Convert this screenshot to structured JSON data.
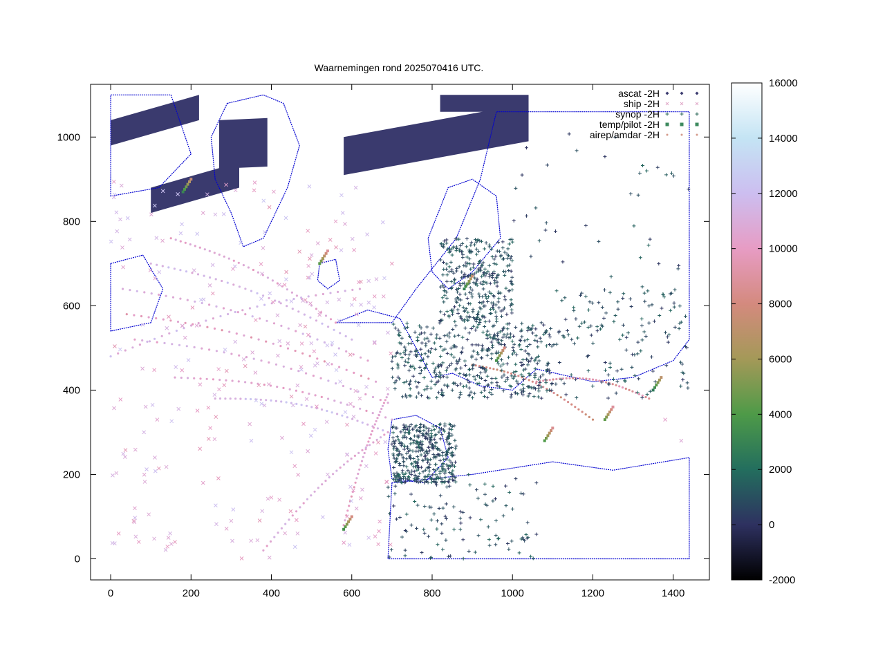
{
  "chart_data": {
    "type": "scatter",
    "title": "Waarnemingen rond 2025070416 UTC.",
    "xlabel": "",
    "ylabel": "",
    "xlim": [
      -50,
      1490
    ],
    "ylim": [
      -50,
      1125
    ],
    "x_ticks": [
      0,
      200,
      400,
      600,
      800,
      1000,
      1200,
      1400
    ],
    "y_ticks": [
      0,
      200,
      400,
      600,
      800,
      1000
    ],
    "grid": false,
    "legend_position": "top-right",
    "legend": [
      {
        "label": "ascat -2H",
        "marker": "diamond",
        "color": "#3a3a6e"
      },
      {
        "label": "ship -2H",
        "marker": "cross",
        "color": "#e0a8c8"
      },
      {
        "label": "synop -2H",
        "marker": "plus",
        "color": "#2e6a5a"
      },
      {
        "label": "temp/pilot -2H",
        "marker": "square",
        "color": "#3d8a5e"
      },
      {
        "label": "airep/amdar -2H",
        "marker": "dot",
        "color": "#d49a8a"
      }
    ],
    "colorbar": {
      "min": -2000,
      "max": 16000,
      "ticks": [
        -2000,
        0,
        2000,
        4000,
        6000,
        8000,
        10000,
        12000,
        14000,
        16000
      ],
      "stops": [
        {
          "value": -2000,
          "color": "#000000"
        },
        {
          "value": 0,
          "color": "#2e3160"
        },
        {
          "value": 2000,
          "color": "#236e5e"
        },
        {
          "value": 4000,
          "color": "#4e9a48"
        },
        {
          "value": 6000,
          "color": "#a49958"
        },
        {
          "value": 8000,
          "color": "#d48a7e"
        },
        {
          "value": 10000,
          "color": "#e79cc4"
        },
        {
          "value": 12000,
          "color": "#ccbef0"
        },
        {
          "value": 14000,
          "color": "#c4e4f4"
        },
        {
          "value": 16000,
          "color": "#ffffff"
        }
      ]
    },
    "coastline_color": "#0000d0",
    "ascat_swaths": [
      {
        "polygon": [
          [
            0,
            1040
          ],
          [
            220,
            1100
          ],
          [
            220,
            1040
          ],
          [
            0,
            980
          ]
        ]
      },
      {
        "polygon": [
          [
            100,
            880
          ],
          [
            320,
            940
          ],
          [
            320,
            880
          ],
          [
            100,
            820
          ]
        ]
      },
      {
        "polygon": [
          [
            270,
            1040
          ],
          [
            390,
            1045
          ],
          [
            390,
            930
          ],
          [
            270,
            925
          ]
        ]
      },
      {
        "polygon": [
          [
            580,
            1000
          ],
          [
            1040,
            1080
          ],
          [
            1040,
            990
          ],
          [
            580,
            910
          ]
        ]
      },
      {
        "polygon": [
          [
            820,
            1100
          ],
          [
            1040,
            1100
          ],
          [
            1040,
            1060
          ],
          [
            820,
            1060
          ]
        ]
      }
    ],
    "airep_tracks": [
      {
        "from": [
          150,
          760
        ],
        "to": [
          560,
          560
        ],
        "value": 10500
      },
      {
        "from": [
          100,
          700
        ],
        "to": [
          600,
          520
        ],
        "value": 11500
      },
      {
        "from": [
          30,
          640
        ],
        "to": [
          640,
          470
        ],
        "value": 11000
      },
      {
        "from": [
          40,
          580
        ],
        "to": [
          660,
          420
        ],
        "value": 10000
      },
      {
        "from": [
          60,
          520
        ],
        "to": [
          690,
          370
        ],
        "value": 10800
      },
      {
        "from": [
          160,
          430
        ],
        "to": [
          700,
          330
        ],
        "value": 10500
      },
      {
        "from": [
          260,
          380
        ],
        "to": [
          690,
          300
        ],
        "value": 11800
      },
      {
        "from": [
          580,
          80
        ],
        "to": [
          690,
          390
        ],
        "value": 10200
      },
      {
        "from": [
          380,
          20
        ],
        "to": [
          690,
          300
        ],
        "value": 10800
      },
      {
        "from": [
          0,
          480
        ],
        "to": [
          620,
          640
        ],
        "value": 11300
      },
      {
        "from": [
          1060,
          420
        ],
        "to": [
          1340,
          380
        ],
        "value": 9000
      },
      {
        "from": [
          900,
          460
        ],
        "to": [
          1200,
          330
        ],
        "value": 8200
      }
    ],
    "ship_sample": [
      [
        20,
        60,
        10000
      ],
      [
        60,
        120,
        10500
      ],
      [
        110,
        240,
        11000
      ],
      [
        160,
        40,
        9800
      ],
      [
        230,
        180,
        10300
      ],
      [
        300,
        90,
        10800
      ],
      [
        350,
        280,
        12000
      ],
      [
        420,
        140,
        10400
      ],
      [
        480,
        320,
        9900
      ],
      [
        540,
        200,
        11200
      ],
      [
        620,
        380,
        10700
      ],
      [
        660,
        250,
        10100
      ],
      [
        420,
        650,
        10900
      ],
      [
        500,
        720,
        11100
      ],
      [
        560,
        800,
        10200
      ],
      [
        230,
        820,
        10600
      ],
      [
        610,
        880,
        11400
      ],
      [
        700,
        700,
        9800
      ],
      [
        1380,
        330,
        10300
      ],
      [
        1420,
        280,
        10800
      ]
    ],
    "synop_regions": [
      {
        "x": [
          700,
          1100
        ],
        "y": [
          380,
          560
        ],
        "density": 1.0
      },
      {
        "x": [
          700,
          860
        ],
        "y": [
          180,
          320
        ],
        "density": 0.8
      },
      {
        "x": [
          690,
          1060
        ],
        "y": [
          0,
          200
        ],
        "density": 0.25
      },
      {
        "x": [
          820,
          1000
        ],
        "y": [
          560,
          760
        ],
        "density": 0.7
      },
      {
        "x": [
          1100,
          1440
        ],
        "y": [
          380,
          640
        ],
        "density": 0.3
      },
      {
        "x": [
          1000,
          1440
        ],
        "y": [
          640,
          1040
        ],
        "density": 0.08
      }
    ],
    "temp_pilot": [
      [
        180,
        870,
        3000
      ],
      [
        520,
        700,
        4200
      ],
      [
        580,
        70,
        3500
      ],
      [
        1230,
        330,
        4400
      ],
      [
        1350,
        400,
        2500
      ],
      [
        880,
        640,
        2800
      ],
      [
        960,
        470,
        3600
      ],
      [
        1080,
        280,
        4000
      ]
    ]
  }
}
